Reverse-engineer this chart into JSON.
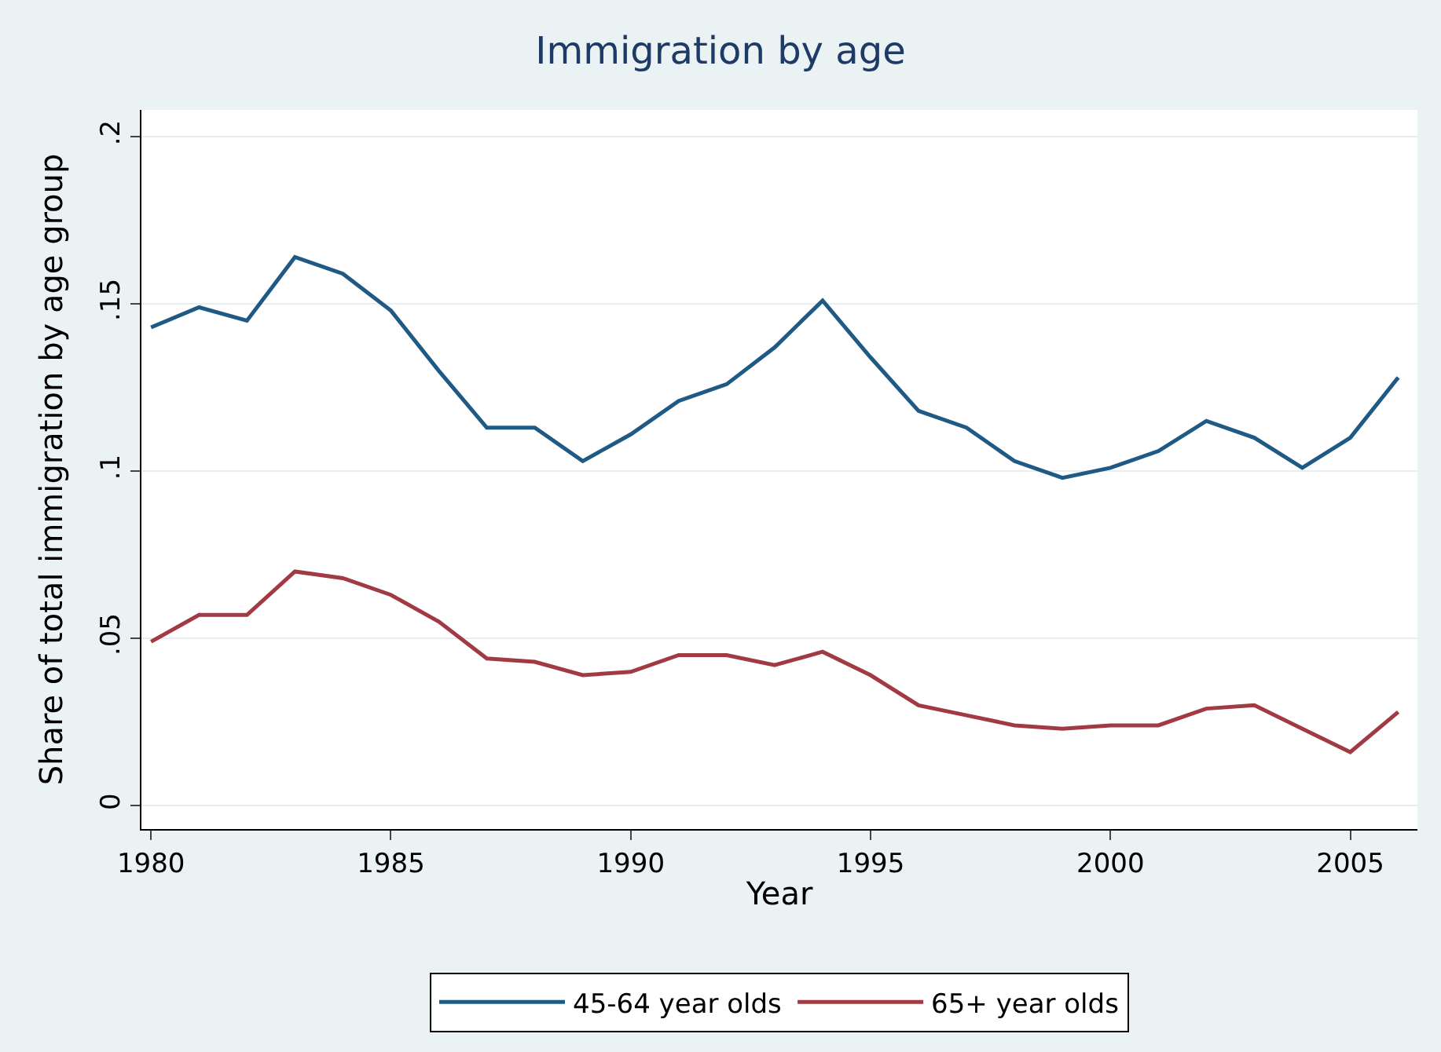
{
  "chart_data": {
    "type": "line",
    "title": "Immigration by age",
    "xlabel": "Year",
    "ylabel": "Share of total immigration by age group",
    "x": [
      1980,
      1981,
      1982,
      1983,
      1984,
      1985,
      1986,
      1987,
      1988,
      1989,
      1990,
      1991,
      1992,
      1993,
      1994,
      1995,
      1996,
      1997,
      1998,
      1999,
      2000,
      2001,
      2002,
      2003,
      2004,
      2005,
      2006
    ],
    "series": [
      {
        "name": "45-64 year olds",
        "color": "#1f5a85",
        "values": [
          0.143,
          0.149,
          0.145,
          0.164,
          0.159,
          0.148,
          0.13,
          0.113,
          0.113,
          0.103,
          0.111,
          0.121,
          0.126,
          0.137,
          0.151,
          0.134,
          0.118,
          0.113,
          0.103,
          0.098,
          0.101,
          0.106,
          0.115,
          0.11,
          0.101,
          0.11,
          0.128
        ]
      },
      {
        "name": "65+ year olds",
        "color": "#a23a44",
        "values": [
          0.049,
          0.057,
          0.057,
          0.07,
          0.068,
          0.063,
          0.055,
          0.044,
          0.043,
          0.039,
          0.04,
          0.045,
          0.045,
          0.042,
          0.046,
          0.039,
          0.03,
          0.027,
          0.024,
          0.023,
          0.024,
          0.024,
          0.029,
          0.03,
          0.023,
          0.016,
          0.028
        ]
      }
    ],
    "xlim": [
      1979.8,
      2006.4
    ],
    "xticks": [
      1980,
      1985,
      1990,
      1995,
      2000,
      2005
    ],
    "ylim": [
      -0.007,
      0.208
    ],
    "yticks": [
      {
        "value": 0,
        "label": "0"
      },
      {
        "value": 0.05,
        "label": ".05"
      },
      {
        "value": 0.1,
        "label": ".1"
      },
      {
        "value": 0.15,
        "label": ".15"
      },
      {
        "value": 0.2,
        "label": ".2"
      }
    ],
    "grid": "y",
    "legend": "bottom",
    "marker": "none",
    "line_style": "solid"
  }
}
